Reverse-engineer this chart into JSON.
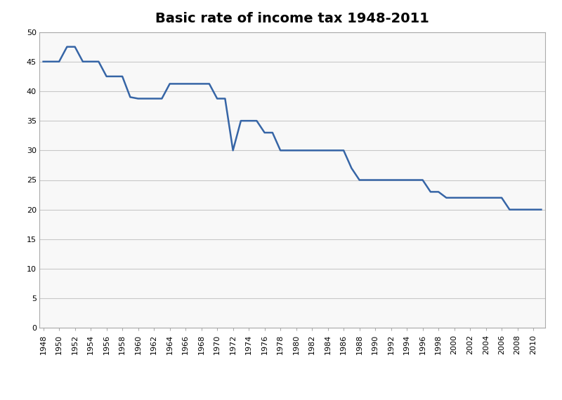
{
  "title": "Basic rate of income tax 1948-2011",
  "title_fontsize": 14,
  "title_fontweight": "bold",
  "line_color": "#3665A6",
  "line_width": 1.8,
  "background_color": "#FFFFFF",
  "plot_bg_color": "#F8F8F8",
  "grid_color": "#C8C8C8",
  "grid_linewidth": 0.8,
  "spine_color": "#AAAAAA",
  "ylim": [
    0,
    50
  ],
  "yticks": [
    0,
    5,
    10,
    15,
    20,
    25,
    30,
    35,
    40,
    45,
    50
  ],
  "xlim": [
    1947.5,
    2011.5
  ],
  "years": [
    1948,
    1949,
    1950,
    1951,
    1952,
    1953,
    1954,
    1955,
    1956,
    1957,
    1958,
    1959,
    1960,
    1961,
    1962,
    1963,
    1964,
    1965,
    1966,
    1967,
    1968,
    1969,
    1970,
    1971,
    1972,
    1973,
    1974,
    1975,
    1976,
    1977,
    1978,
    1979,
    1980,
    1981,
    1982,
    1983,
    1984,
    1985,
    1986,
    1987,
    1988,
    1989,
    1990,
    1991,
    1992,
    1993,
    1994,
    1995,
    1996,
    1997,
    1998,
    1999,
    2000,
    2001,
    2002,
    2003,
    2004,
    2005,
    2006,
    2007,
    2008,
    2009,
    2010,
    2011
  ],
  "rates": [
    45,
    45,
    45,
    47.5,
    47.5,
    45,
    45,
    45,
    42.5,
    42.5,
    42.5,
    39,
    38.75,
    38.75,
    38.75,
    38.75,
    41.25,
    41.25,
    41.25,
    41.25,
    41.25,
    41.25,
    38.75,
    38.75,
    30,
    35,
    35,
    35,
    33,
    33,
    30,
    30,
    30,
    30,
    30,
    30,
    30,
    30,
    30,
    27,
    25,
    25,
    25,
    25,
    25,
    25,
    25,
    25,
    25,
    23,
    23,
    22,
    22,
    22,
    22,
    22,
    22,
    22,
    22,
    20,
    20,
    20,
    20,
    20
  ],
  "tick_fontsize": 8,
  "xtick_step": 2
}
